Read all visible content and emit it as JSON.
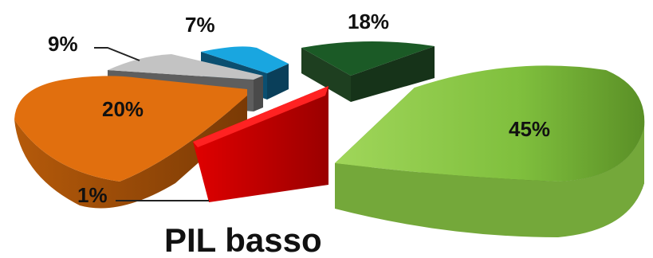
{
  "chart_data": {
    "type": "pie",
    "title": "PIL basso",
    "exploded": true,
    "three_d": true,
    "slices": [
      {
        "label": "45%",
        "value": 45,
        "color": "#8cc63f",
        "dark": "#4c7a1e"
      },
      {
        "label": "18%",
        "value": 18,
        "color": "#1f5c2a",
        "dark": "#0f3317"
      },
      {
        "label": "7%",
        "value": 7,
        "color": "#1aa3dc",
        "dark": "#0d5a7d"
      },
      {
        "label": "9%",
        "value": 9,
        "color": "#bdbdbd",
        "dark": "#6f6f6f"
      },
      {
        "label": "20%",
        "value": 20,
        "color": "#e3720f",
        "dark": "#9a4808"
      },
      {
        "label": "1%",
        "value": 1,
        "color": "#ff1a1a",
        "dark": "#b80000"
      }
    ]
  }
}
